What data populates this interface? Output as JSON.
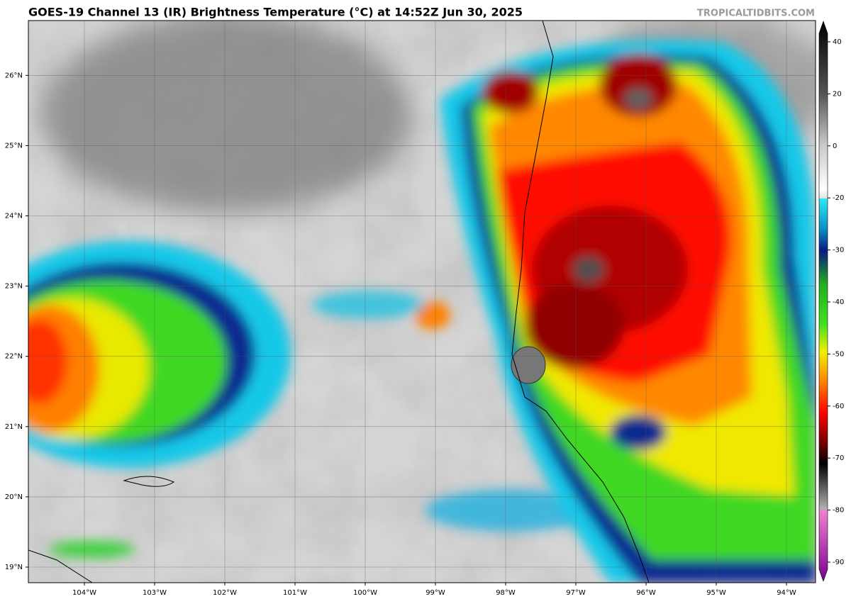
{
  "header": {
    "title": "GOES-19 Channel 13 (IR) Brightness Temperature (°C) at 14:52Z Jun 30, 2025",
    "watermark": "TROPICALTIDBITS.COM"
  },
  "map": {
    "lat_ticks": [
      {
        "value": 19,
        "label": "19°N"
      },
      {
        "value": 20,
        "label": "20°N"
      },
      {
        "value": 21,
        "label": "21°N"
      },
      {
        "value": 22,
        "label": "22°N"
      },
      {
        "value": 23,
        "label": "23°N"
      },
      {
        "value": 24,
        "label": "24°N"
      },
      {
        "value": 25,
        "label": "25°N"
      },
      {
        "value": 26,
        "label": "26°N"
      }
    ],
    "lon_ticks": [
      {
        "value": -104,
        "label": "104°W"
      },
      {
        "value": -103,
        "label": "103°W"
      },
      {
        "value": -102,
        "label": "102°W"
      },
      {
        "value": -101,
        "label": "101°W"
      },
      {
        "value": -100,
        "label": "100°W"
      },
      {
        "value": -99,
        "label": "99°W"
      },
      {
        "value": -98,
        "label": "98°W"
      },
      {
        "value": -97,
        "label": "97°W"
      },
      {
        "value": -96,
        "label": "96°W"
      },
      {
        "value": -95,
        "label": "95°W"
      },
      {
        "value": -94,
        "label": "94°W"
      }
    ]
  },
  "colorbar": {
    "ticks": [
      40,
      20,
      0,
      -20,
      -30,
      -40,
      -50,
      -60,
      -70,
      -80,
      -90
    ]
  }
}
